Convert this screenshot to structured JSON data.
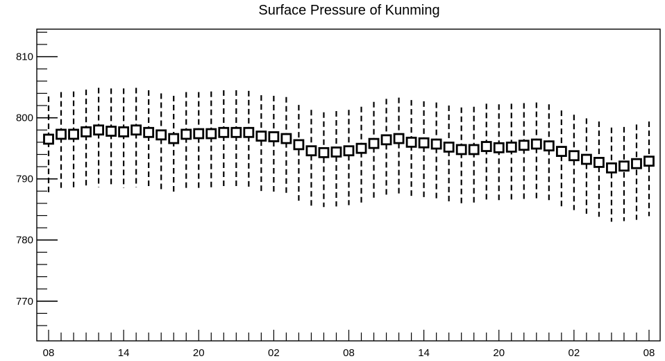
{
  "chart_data": {
    "type": "box",
    "title": "Surface Pressure of Kunming",
    "xlabel": "",
    "ylabel": "",
    "ylim": [
      763.5,
      814.5
    ],
    "yticks": [
      770,
      780,
      790,
      800,
      810
    ],
    "ytick_labels": [
      "770",
      "780",
      "790",
      "800",
      "810"
    ],
    "xtick_labels": [
      "08",
      "14",
      "20",
      "02",
      "08",
      "14",
      "20",
      "02",
      "08"
    ],
    "grid": false,
    "legend": "none",
    "series": [
      {
        "center": [
          796.5,
          797.3,
          797.3,
          797.7,
          798.0,
          797.8,
          797.7,
          798.0,
          797.6,
          797.2,
          796.6,
          797.3,
          797.4,
          797.4,
          797.6,
          797.6,
          797.6,
          797.0,
          796.9,
          796.6,
          795.6,
          794.6,
          794.3,
          794.4,
          794.6,
          795.0,
          795.8,
          796.4,
          796.6,
          796.0,
          795.9,
          795.7,
          795.2,
          794.8,
          794.8,
          795.3,
          795.1,
          795.2,
          795.5,
          795.7,
          795.4,
          794.5,
          793.8,
          793.2,
          792.7,
          791.8,
          792.1,
          792.5,
          792.9
        ],
        "high": [
          803.5,
          804.2,
          804.3,
          804.6,
          804.9,
          804.8,
          804.8,
          804.9,
          804.5,
          804.0,
          803.6,
          804.2,
          804.2,
          804.3,
          804.5,
          804.5,
          804.4,
          803.7,
          803.6,
          803.4,
          802.1,
          801.3,
          800.9,
          801.1,
          801.3,
          801.8,
          802.6,
          803.1,
          803.3,
          802.9,
          802.7,
          802.5,
          802.0,
          801.7,
          801.8,
          802.3,
          802.2,
          802.3,
          802.4,
          802.5,
          802.2,
          801.2,
          800.5,
          799.9,
          799.4,
          798.4,
          798.5,
          798.9,
          799.4
        ],
        "low": [
          787.3,
          788.1,
          788.2,
          788.4,
          788.6,
          788.6,
          788.5,
          788.6,
          788.3,
          787.8,
          787.4,
          788.0,
          788.1,
          788.1,
          788.4,
          788.4,
          788.4,
          787.8,
          787.7,
          787.5,
          786.4,
          785.6,
          785.4,
          785.5,
          785.7,
          786.0,
          786.8,
          787.3,
          787.4,
          786.9,
          786.8,
          786.6,
          786.0,
          785.7,
          785.7,
          786.1,
          786.1,
          786.2,
          786.4,
          786.5,
          786.0,
          785.3,
          784.9,
          784.3,
          783.8,
          783.0,
          783.1,
          783.3,
          783.9
        ]
      }
    ]
  }
}
